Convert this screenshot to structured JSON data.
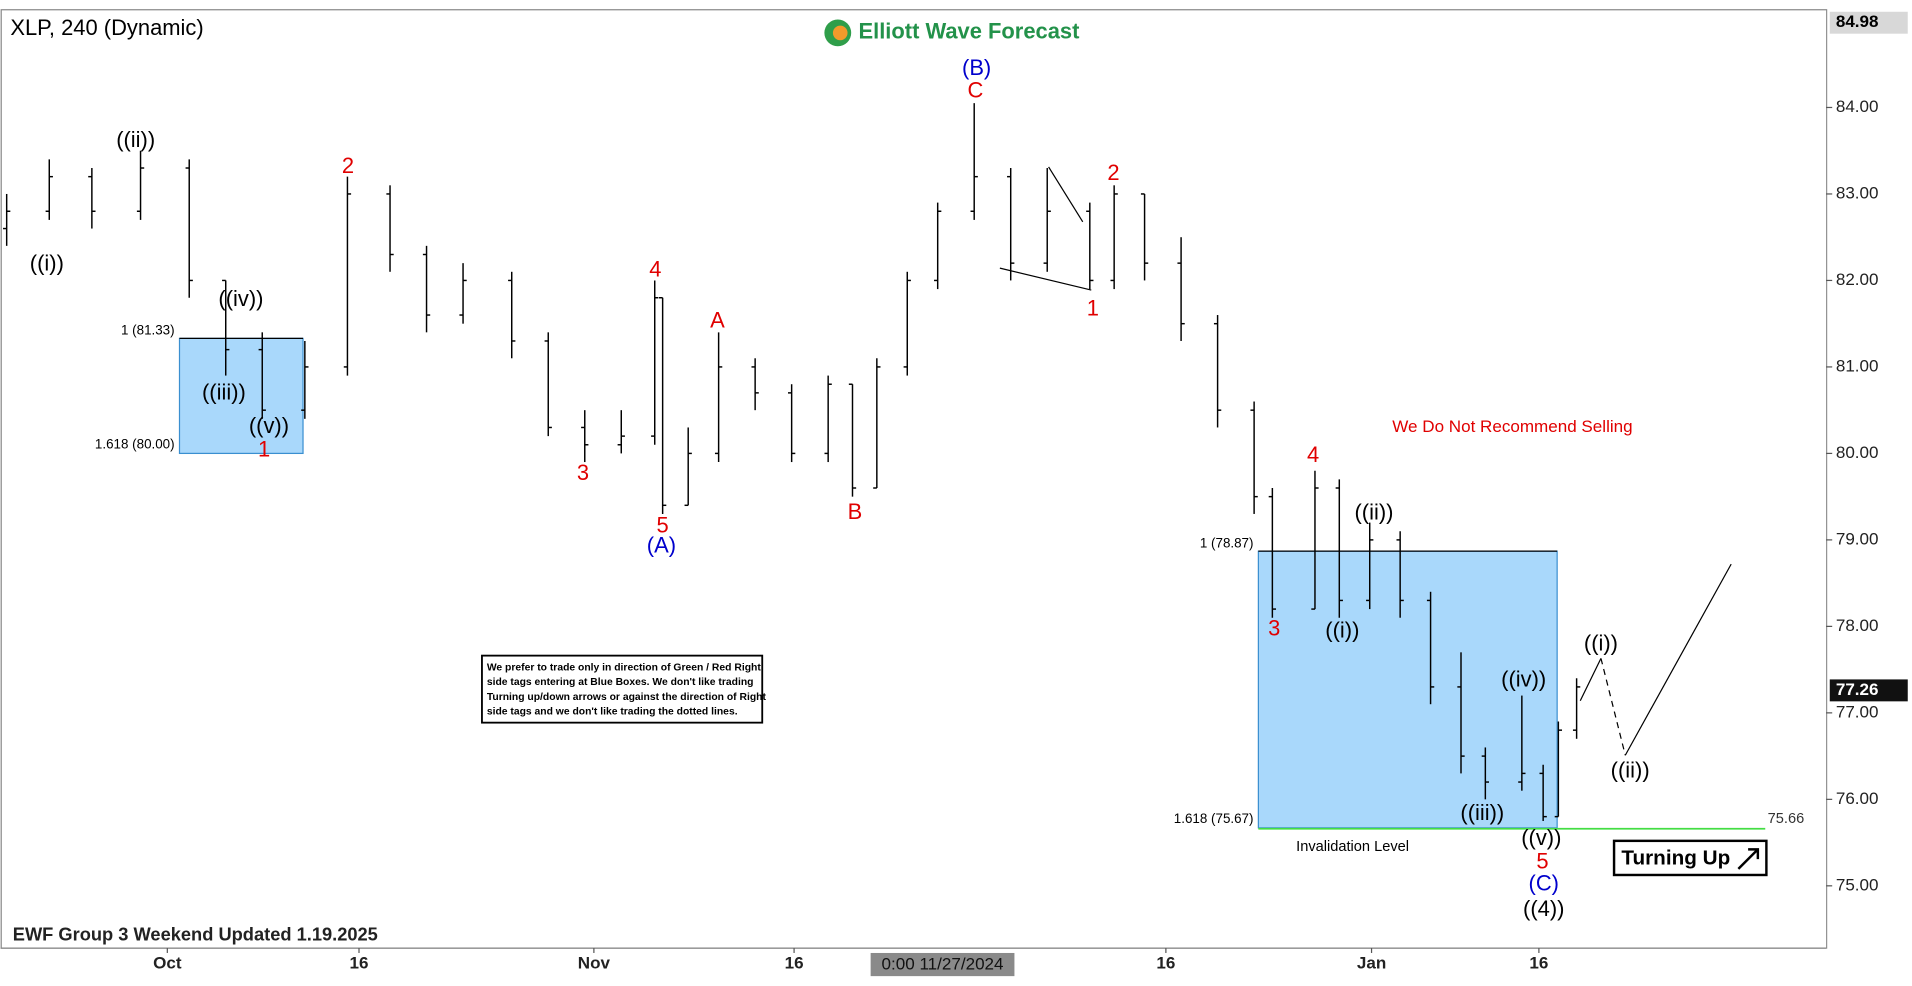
{
  "chart_data": {
    "type": "ohlc",
    "title": "XLP, 240 (Dynamic)",
    "brand": "Elliott Wave Forecast",
    "footer": "EWF Group 3 Weekend Updated 1.19.2025",
    "ylim": [
      74.28,
      85.13
    ],
    "yticks": [
      {
        "value": 75,
        "label": "75.00"
      },
      {
        "value": 76,
        "label": "76.00"
      },
      {
        "value": 77,
        "label": "77.00"
      },
      {
        "value": 78,
        "label": "78.00"
      },
      {
        "value": 79,
        "label": "79.00"
      },
      {
        "value": 80,
        "label": "80.00"
      },
      {
        "value": 81,
        "label": "81.00"
      },
      {
        "value": 82,
        "label": "82.00"
      },
      {
        "value": 83,
        "label": "83.00"
      },
      {
        "value": 84,
        "label": "84.00"
      }
    ],
    "xlim": [
      0,
      300
    ],
    "xticks": [
      {
        "value": 27.4,
        "label": "Oct"
      },
      {
        "value": 58.9,
        "label": "16"
      },
      {
        "value": 97.5,
        "label": "Nov"
      },
      {
        "value": 130.4,
        "label": "16"
      },
      {
        "value": 191.5,
        "label": "16"
      },
      {
        "value": 225.3,
        "label": "Jan"
      },
      {
        "value": 252.8,
        "label": "16"
      }
    ],
    "crosshair": {
      "x": 157.6,
      "label": "0:00 11/27/2024"
    },
    "top_price": 84.98,
    "last_price": 77.26,
    "bar_color": "#000000",
    "x": [
      1,
      8,
      15,
      23,
      31,
      37,
      43,
      50,
      57,
      64,
      70,
      76,
      84,
      90,
      96,
      102,
      107.5,
      108.8,
      113,
      118,
      124,
      130,
      136,
      140,
      144,
      149,
      154,
      160,
      166,
      172,
      179,
      183,
      188,
      194,
      200,
      206,
      209,
      216,
      220,
      225,
      230,
      235,
      240,
      244,
      250,
      253.5,
      256,
      259
    ],
    "open": [
      82.6,
      82.8,
      83.2,
      82.8,
      83.3,
      82.0,
      81.2,
      80.5,
      81.0,
      83.0,
      82.3,
      81.6,
      82.0,
      81.3,
      80.3,
      80.1,
      80.2,
      81.8,
      79.4,
      80.0,
      81.0,
      80.7,
      80.0,
      80.8,
      79.6,
      81.0,
      82.0,
      82.8,
      83.2,
      82.2,
      82.8,
      82.0,
      83.0,
      82.2,
      81.5,
      80.5,
      79.5,
      78.2,
      79.6,
      78.3,
      79.0,
      78.3,
      77.3,
      76.5,
      76.2,
      76.3,
      75.8,
      76.8
    ],
    "high": [
      83.0,
      83.4,
      83.3,
      83.5,
      83.4,
      82.0,
      81.4,
      81.3,
      83.2,
      83.1,
      82.4,
      82.2,
      82.1,
      81.4,
      80.5,
      80.5,
      82.0,
      81.8,
      80.3,
      81.4,
      81.1,
      80.8,
      80.9,
      80.8,
      81.1,
      82.1,
      82.9,
      84.05,
      83.3,
      83.3,
      82.9,
      83.1,
      83.0,
      82.5,
      81.6,
      80.6,
      79.6,
      79.8,
      79.7,
      79.2,
      79.1,
      78.4,
      77.7,
      76.6,
      77.2,
      76.4,
      76.9,
      77.4
    ],
    "low": [
      82.4,
      82.7,
      82.6,
      82.7,
      81.8,
      80.9,
      80.4,
      80.4,
      80.9,
      82.1,
      81.4,
      81.5,
      81.1,
      80.2,
      79.9,
      80.0,
      80.1,
      79.3,
      79.4,
      79.9,
      80.5,
      79.9,
      79.9,
      79.5,
      79.6,
      80.9,
      81.9,
      82.7,
      82.0,
      82.1,
      81.9,
      81.9,
      82.0,
      81.3,
      80.3,
      79.3,
      78.1,
      78.2,
      78.1,
      78.2,
      78.1,
      77.1,
      76.3,
      76.0,
      76.1,
      75.75,
      75.8,
      76.7
    ],
    "close": [
      82.8,
      83.2,
      82.8,
      83.3,
      82.0,
      81.2,
      80.5,
      81.0,
      83.0,
      82.3,
      81.6,
      82.0,
      81.3,
      80.3,
      80.1,
      80.2,
      81.8,
      79.4,
      80.0,
      81.0,
      80.7,
      80.0,
      80.8,
      79.6,
      81.0,
      82.0,
      82.8,
      83.2,
      82.2,
      82.8,
      82.0,
      83.0,
      82.2,
      81.5,
      80.5,
      79.5,
      78.2,
      79.6,
      78.3,
      79.0,
      78.3,
      77.3,
      76.5,
      76.2,
      76.3,
      75.8,
      76.8,
      77.3
    ],
    "zones": [
      {
        "x": [
          29.4,
          49.7
        ],
        "top": 81.33,
        "bottom": 80.0,
        "top_label": "1 (81.33)",
        "bottom_label": "1.618 (80.00)",
        "color": "#a9d8fb"
      },
      {
        "x": [
          206.7,
          255.8
        ],
        "top": 78.87,
        "bottom": 75.67,
        "top_label": "1 (78.87)",
        "bottom_label": "1.618 (75.67)",
        "color": "#a9d8fb"
      }
    ],
    "invalidation": {
      "value": 75.66,
      "label": "Invalidation Level",
      "x": [
        206.7,
        290
      ],
      "color": "#44dd44"
    },
    "projection": {
      "x": [
        259.6,
        263,
        267,
        284.4
      ],
      "y": [
        77.14,
        77.63,
        76.51,
        78.72
      ]
    },
    "annotations": [
      {
        "text": "((i))",
        "x": 7.6,
        "y": 82.18,
        "color": "#000000"
      },
      {
        "text": "((ii))",
        "x": 22.2,
        "y": 83.61,
        "color": "#000000"
      },
      {
        "text": "((iv))",
        "x": 39.5,
        "y": 81.77,
        "color": "#000000"
      },
      {
        "text": "((iii))",
        "x": 36.7,
        "y": 80.69,
        "color": "#000000"
      },
      {
        "text": "((v))",
        "x": 44.1,
        "y": 80.3,
        "color": "#000000"
      },
      {
        "text": "1",
        "x": 43.3,
        "y": 80.03,
        "color": "#e00000"
      },
      {
        "text": "2",
        "x": 57.1,
        "y": 83.31,
        "color": "#e00000"
      },
      {
        "text": "3",
        "x": 95.7,
        "y": 79.76,
        "color": "#e00000"
      },
      {
        "text": "4",
        "x": 107.6,
        "y": 82.11,
        "color": "#e00000"
      },
      {
        "text": "5",
        "x": 108.8,
        "y": 79.15,
        "color": "#e00000"
      },
      {
        "text": "(A)",
        "x": 108.6,
        "y": 78.92,
        "color": "#0000cc"
      },
      {
        "text": "A",
        "x": 117.8,
        "y": 81.52,
        "color": "#e00000"
      },
      {
        "text": "B",
        "x": 140.4,
        "y": 79.31,
        "color": "#e00000"
      },
      {
        "text": "(B)",
        "x": 160.4,
        "y": 84.44,
        "color": "#0000cc"
      },
      {
        "text": "C",
        "x": 160.2,
        "y": 84.18,
        "color": "#e00000"
      },
      {
        "text": "1",
        "x": 179.5,
        "y": 81.66,
        "color": "#e00000"
      },
      {
        "text": "2",
        "x": 182.9,
        "y": 83.23,
        "color": "#e00000"
      },
      {
        "text": "3",
        "x": 209.3,
        "y": 77.96,
        "color": "#e00000"
      },
      {
        "text": "4",
        "x": 215.7,
        "y": 79.97,
        "color": "#e00000"
      },
      {
        "text": "((ii))",
        "x": 225.7,
        "y": 79.3,
        "color": "#000000"
      },
      {
        "text": "((i))",
        "x": 220.5,
        "y": 77.94,
        "color": "#000000"
      },
      {
        "text": "((iv))",
        "x": 250.3,
        "y": 77.37,
        "color": "#000000"
      },
      {
        "text": "((iii))",
        "x": 243.5,
        "y": 75.83,
        "color": "#000000"
      },
      {
        "text": "((v))",
        "x": 253.2,
        "y": 75.54,
        "color": "#000000"
      },
      {
        "text": "5",
        "x": 253.4,
        "y": 75.27,
        "color": "#e00000"
      },
      {
        "text": "(C)",
        "x": 253.6,
        "y": 75.01,
        "color": "#0000cc"
      },
      {
        "text": "((4))",
        "x": 253.6,
        "y": 74.72,
        "color": "#000000"
      },
      {
        "text": "((i))",
        "x": 263,
        "y": 77.79,
        "color": "#000000"
      },
      {
        "text": "((ii))",
        "x": 267.8,
        "y": 76.32,
        "color": "#000000"
      }
    ],
    "warning": "We Do Not Recommend Selling",
    "note": [
      "We prefer to trade only in direction of Green / Red Right",
      "side tags entering at Blue Boxes. We don't like trading",
      "Turning up/down arrows or against the direction of Right",
      "side tags and we don't like trading the dotted lines."
    ],
    "signal": "Turning Up"
  }
}
